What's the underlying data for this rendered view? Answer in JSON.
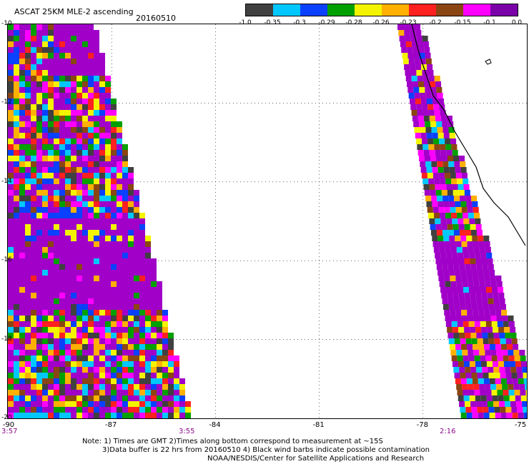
{
  "header": {
    "title": "ASCAT 25KM MLE-2 ascending",
    "date": "20160510"
  },
  "colorbar": {
    "colors": [
      "#404040",
      "#00c8ff",
      "#0a40ff",
      "#00a000",
      "#f4f400",
      "#ffb000",
      "#ff2020",
      "#8b4513",
      "#ff00ff",
      "#7a00a8"
    ],
    "labels": [
      "-1.0",
      "-0.35",
      "-0.3",
      "-0.29",
      "-0.28",
      "-0.26",
      "-0.23",
      "-0.2",
      "-0.15",
      "-0.1",
      "0.0"
    ]
  },
  "map": {
    "lat_labels": [
      "-10",
      "-12",
      "-14",
      "-16",
      "-18",
      "-20"
    ],
    "lon_labels": [
      "-90",
      "-87",
      "-84",
      "-81",
      "-78",
      "-75"
    ],
    "lat_range": [
      -20,
      -10
    ],
    "lon_range": [
      -90,
      -75
    ],
    "swath_colors": [
      "#a000c8",
      "#a000c8",
      "#a000c8",
      "#ff2020",
      "#f4f400",
      "#00a000",
      "#ff00ff",
      "#ffb000",
      "#0a40ff",
      "#00c8ff",
      "#8b4513",
      "#404040"
    ]
  },
  "times": {
    "left_start": "3:57",
    "left_end": "3:55",
    "right": "2:16"
  },
  "notes": {
    "line1": "Note: 1) Times are GMT 2)Times along bottom correspond to measurement at ~15S",
    "line2": "3)Data buffer is 22 hrs from 20160510 4) Black wind barbs indicate possible contamination",
    "line3": "NOAA/NESDIS/Center for Satellite Applications and Research"
  }
}
